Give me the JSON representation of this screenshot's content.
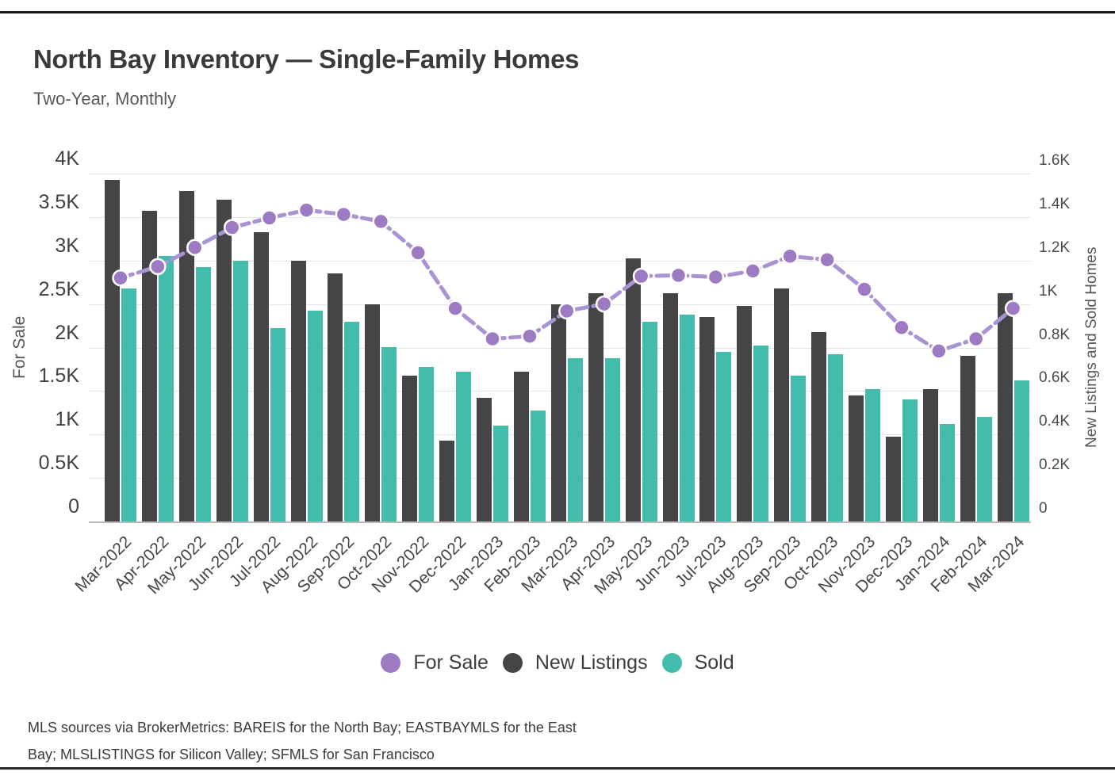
{
  "chart_data": {
    "type": "combo-bar-line",
    "title": "North Bay Inventory — Single-Family Homes",
    "subtitle": "Two-Year, Monthly",
    "categories": [
      "Mar-2022",
      "Apr-2022",
      "May-2022",
      "Jun-2022",
      "Jul-2022",
      "Aug-2022",
      "Sep-2022",
      "Oct-2022",
      "Nov-2022",
      "Dec-2022",
      "Jan-2023",
      "Feb-2023",
      "Mar-2023",
      "Apr-2023",
      "May-2023",
      "Jun-2023",
      "Jul-2023",
      "Aug-2023",
      "Sep-2023",
      "Oct-2023",
      "Nov-2023",
      "Dec-2023",
      "Jan-2024",
      "Feb-2024",
      "Mar-2024"
    ],
    "series": [
      {
        "name": "For Sale",
        "type": "line",
        "axis": "left",
        "color": "#9c7bc2",
        "line_color": "#a993d2",
        "values": [
          2800,
          2930,
          3150,
          3380,
          3490,
          3580,
          3530,
          3450,
          3090,
          2450,
          2100,
          2130,
          2420,
          2500,
          2820,
          2830,
          2810,
          2880,
          3050,
          3010,
          2670,
          2230,
          1960,
          2100,
          2450
        ]
      },
      {
        "name": "New Listings",
        "type": "bar",
        "axis": "right",
        "color": "#454548",
        "values": [
          1570,
          1430,
          1520,
          1480,
          1330,
          1200,
          1140,
          1000,
          670,
          370,
          570,
          690,
          1000,
          1050,
          1210,
          1050,
          940,
          990,
          1070,
          870,
          580,
          390,
          610,
          760,
          1050
        ]
      },
      {
        "name": "Sold",
        "type": "bar",
        "axis": "right",
        "color": "#44bcab",
        "values": [
          1070,
          1220,
          1170,
          1200,
          890,
          970,
          920,
          800,
          710,
          690,
          440,
          510,
          750,
          750,
          920,
          950,
          780,
          810,
          670,
          770,
          610,
          560,
          450,
          480,
          650
        ]
      }
    ],
    "left_axis": {
      "label": "For Sale",
      "min": 0,
      "max": 4000,
      "tick_step": 500,
      "tick_labels": [
        "4K",
        "3.5K",
        "3K",
        "2.5K",
        "2K",
        "1.5K",
        "1K",
        "0.5K",
        "0"
      ]
    },
    "right_axis": {
      "label": "New Listings and Sold Homes",
      "min": 0,
      "max": 1600,
      "tick_step": 200,
      "tick_labels": [
        "1.6K",
        "1.4K",
        "1.2K",
        "1K",
        "0.8K",
        "0.6K",
        "0.4K",
        "0.2K",
        "0"
      ]
    },
    "grid": true,
    "legend_position": "bottom"
  },
  "footer": {
    "line1": "MLS sources via BrokerMetrics: BAREIS for the North Bay; EASTBAYMLS for the East",
    "line2": "Bay; MLSLISTINGS for Silicon Valley; SFMLS for San Francisco"
  }
}
